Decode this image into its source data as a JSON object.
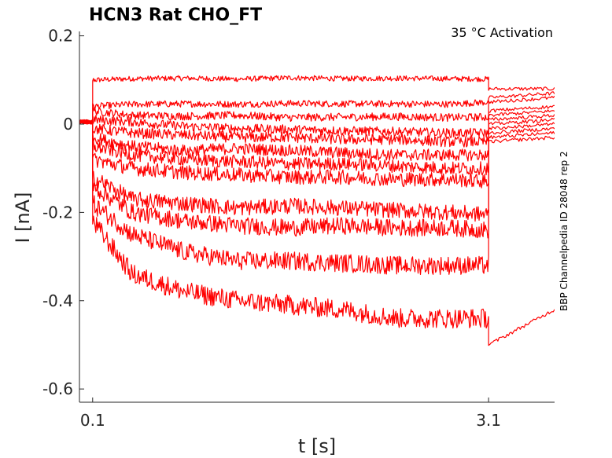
{
  "chart_data": {
    "type": "line",
    "title": "HCN3  Rat  CHO_FT",
    "annotation": "35 °C  Activation",
    "side_label": "BBP Channelpedia ID 28048 rep 2",
    "xlabel": "t [s]",
    "ylabel": "I [nA]",
    "x_ticks": [
      0.1,
      3.1
    ],
    "x_tick_labels": [
      "0.1",
      "3.1"
    ],
    "y_ticks": [
      0.2,
      0,
      -0.2,
      -0.4,
      -0.6
    ],
    "y_tick_labels": [
      "0.2",
      "0",
      "-0.2",
      "-0.4",
      "-0.6"
    ],
    "xlim": [
      0.0,
      3.6
    ],
    "ylim": [
      -0.63,
      0.21
    ],
    "grid": false,
    "line_color": "#ff0000",
    "step_on": 0.1,
    "step_off": 3.1,
    "series": [
      {
        "baseline": 0.005,
        "x": [
          0.1,
          0.4,
          0.8,
          1.2,
          1.6,
          2.0,
          2.4,
          2.8,
          3.1
        ],
        "values": [
          0.1,
          0.103,
          0.104,
          0.102,
          0.105,
          0.103,
          0.104,
          0.103,
          0.102
        ],
        "tail": [
          0.08,
          0.08
        ]
      },
      {
        "baseline": 0.005,
        "x": [
          0.1,
          0.4,
          0.8,
          1.2,
          1.6,
          2.0,
          2.4,
          2.8,
          3.1
        ],
        "values": [
          0.04,
          0.045,
          0.046,
          0.045,
          0.047,
          0.046,
          0.046,
          0.045,
          0.05
        ],
        "tail": [
          0.06,
          0.07
        ]
      },
      {
        "baseline": 0.005,
        "x": [
          0.1,
          0.4,
          0.8,
          1.2,
          1.6,
          2.0,
          2.4,
          2.8,
          3.1
        ],
        "values": [
          0.03,
          0.02,
          0.018,
          0.02,
          0.015,
          0.016,
          0.017,
          0.015,
          0.016
        ],
        "tail": [
          0.05,
          0.06
        ]
      },
      {
        "baseline": 0.005,
        "x": [
          0.1,
          0.4,
          0.8,
          1.2,
          1.6,
          2.0,
          2.4,
          2.8,
          3.1
        ],
        "values": [
          0.01,
          0.005,
          -0.005,
          -0.01,
          -0.012,
          -0.015,
          -0.017,
          -0.02,
          -0.02
        ],
        "tail": [
          0.03,
          0.04
        ]
      },
      {
        "baseline": 0.005,
        "x": [
          0.1,
          0.4,
          0.8,
          1.2,
          1.6,
          2.0,
          2.4,
          2.8,
          3.1
        ],
        "values": [
          -0.01,
          -0.02,
          -0.025,
          -0.03,
          -0.03,
          -0.035,
          -0.035,
          -0.04,
          -0.04
        ],
        "tail": [
          0.02,
          0.03
        ]
      },
      {
        "baseline": 0.005,
        "x": [
          0.1,
          0.4,
          0.8,
          1.2,
          1.6,
          2.0,
          2.4,
          2.8,
          3.1
        ],
        "values": [
          -0.03,
          -0.05,
          -0.06,
          -0.055,
          -0.06,
          -0.065,
          -0.07,
          -0.07,
          -0.07
        ],
        "tail": [
          0.01,
          0.02
        ]
      },
      {
        "baseline": 0.005,
        "x": [
          0.1,
          0.4,
          0.8,
          1.2,
          1.6,
          2.0,
          2.4,
          2.8,
          3.1
        ],
        "values": [
          -0.05,
          -0.07,
          -0.08,
          -0.085,
          -0.09,
          -0.09,
          -0.095,
          -0.1,
          -0.1
        ],
        "tail": [
          0.0,
          0.01
        ]
      },
      {
        "baseline": 0.005,
        "x": [
          0.1,
          0.4,
          0.8,
          1.2,
          1.6,
          2.0,
          2.4,
          2.8,
          3.1
        ],
        "values": [
          -0.08,
          -0.1,
          -0.11,
          -0.115,
          -0.12,
          -0.12,
          -0.125,
          -0.125,
          -0.13
        ],
        "tail": [
          -0.01,
          0.0
        ]
      },
      {
        "baseline": 0.005,
        "x": [
          0.1,
          0.4,
          0.8,
          1.2,
          1.6,
          2.0,
          2.4,
          2.8,
          3.1
        ],
        "values": [
          -0.12,
          -0.17,
          -0.18,
          -0.19,
          -0.185,
          -0.19,
          -0.195,
          -0.2,
          -0.205
        ],
        "tail": [
          -0.02,
          -0.01
        ]
      },
      {
        "baseline": 0.005,
        "x": [
          0.1,
          0.4,
          0.8,
          1.2,
          1.6,
          2.0,
          2.4,
          2.8,
          3.1
        ],
        "values": [
          -0.14,
          -0.2,
          -0.22,
          -0.23,
          -0.235,
          -0.23,
          -0.235,
          -0.235,
          -0.24
        ],
        "tail": [
          -0.03,
          -0.02
        ]
      },
      {
        "baseline": 0.005,
        "x": [
          0.1,
          0.4,
          0.8,
          1.2,
          1.6,
          2.0,
          2.4,
          2.8,
          3.1
        ],
        "values": [
          -0.18,
          -0.25,
          -0.29,
          -0.31,
          -0.31,
          -0.315,
          -0.32,
          -0.32,
          -0.32
        ],
        "tail": [
          -0.04,
          -0.03
        ]
      },
      {
        "baseline": 0.005,
        "x": [
          0.1,
          0.4,
          0.8,
          1.2,
          1.6,
          2.0,
          2.4,
          2.8,
          3.1
        ],
        "values": [
          -0.22,
          -0.34,
          -0.38,
          -0.4,
          -0.41,
          -0.42,
          -0.44,
          -0.44,
          -0.44
        ],
        "tail": [
          -0.5,
          -0.42
        ]
      }
    ]
  }
}
